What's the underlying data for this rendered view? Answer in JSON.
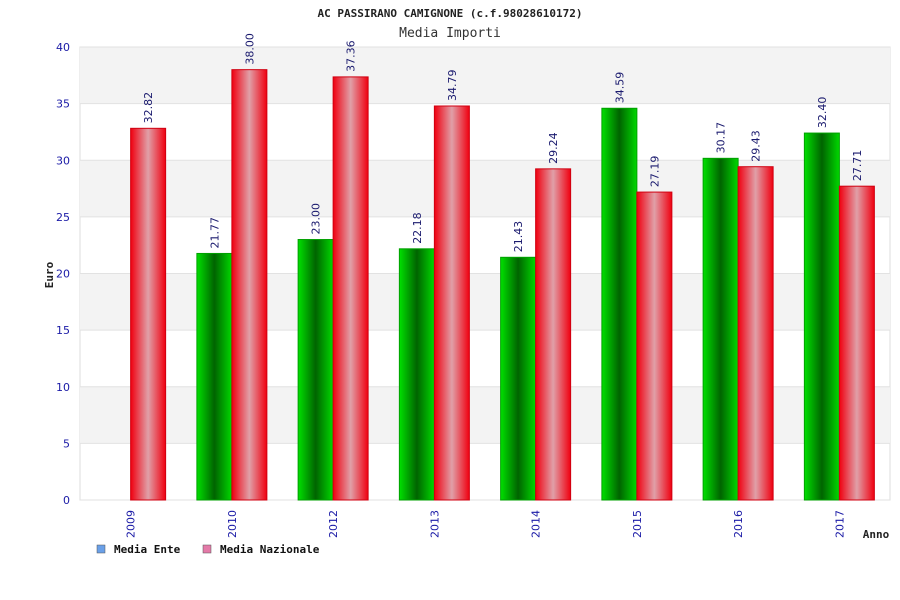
{
  "chart_data": {
    "type": "bar",
    "title": "AC PASSIRANO CAMIGNONE (c.f.98028610172)",
    "subtitle": "Media Importi",
    "xlabel": "Anno",
    "ylabel": "Euro",
    "ylim": [
      0,
      40
    ],
    "yticks": [
      0,
      5,
      10,
      15,
      20,
      25,
      30,
      35,
      40
    ],
    "grid": true,
    "legend_position": "bottom-left",
    "categories": [
      "2009",
      "2010",
      "2012",
      "2013",
      "2014",
      "2015",
      "2016",
      "2017"
    ],
    "series": [
      {
        "name": "Media Ente",
        "legend_color": "#6aa0e8",
        "bar_color": "#00b400",
        "values": [
          null,
          21.77,
          23.0,
          22.18,
          21.43,
          34.59,
          30.17,
          32.4
        ],
        "labels": [
          "",
          "21.77",
          "23.00",
          "22.18",
          "21.43",
          "34.59",
          "30.17",
          "32.40"
        ]
      },
      {
        "name": "Media Nazionale",
        "legend_color": "#e47aa8",
        "bar_color": "#f01020",
        "values": [
          32.82,
          38.0,
          37.36,
          34.79,
          29.24,
          27.19,
          29.43,
          27.71
        ],
        "labels": [
          "32.82",
          "38.00",
          "37.36",
          "34.79",
          "29.24",
          "27.19",
          "29.43",
          "27.71"
        ]
      }
    ]
  }
}
